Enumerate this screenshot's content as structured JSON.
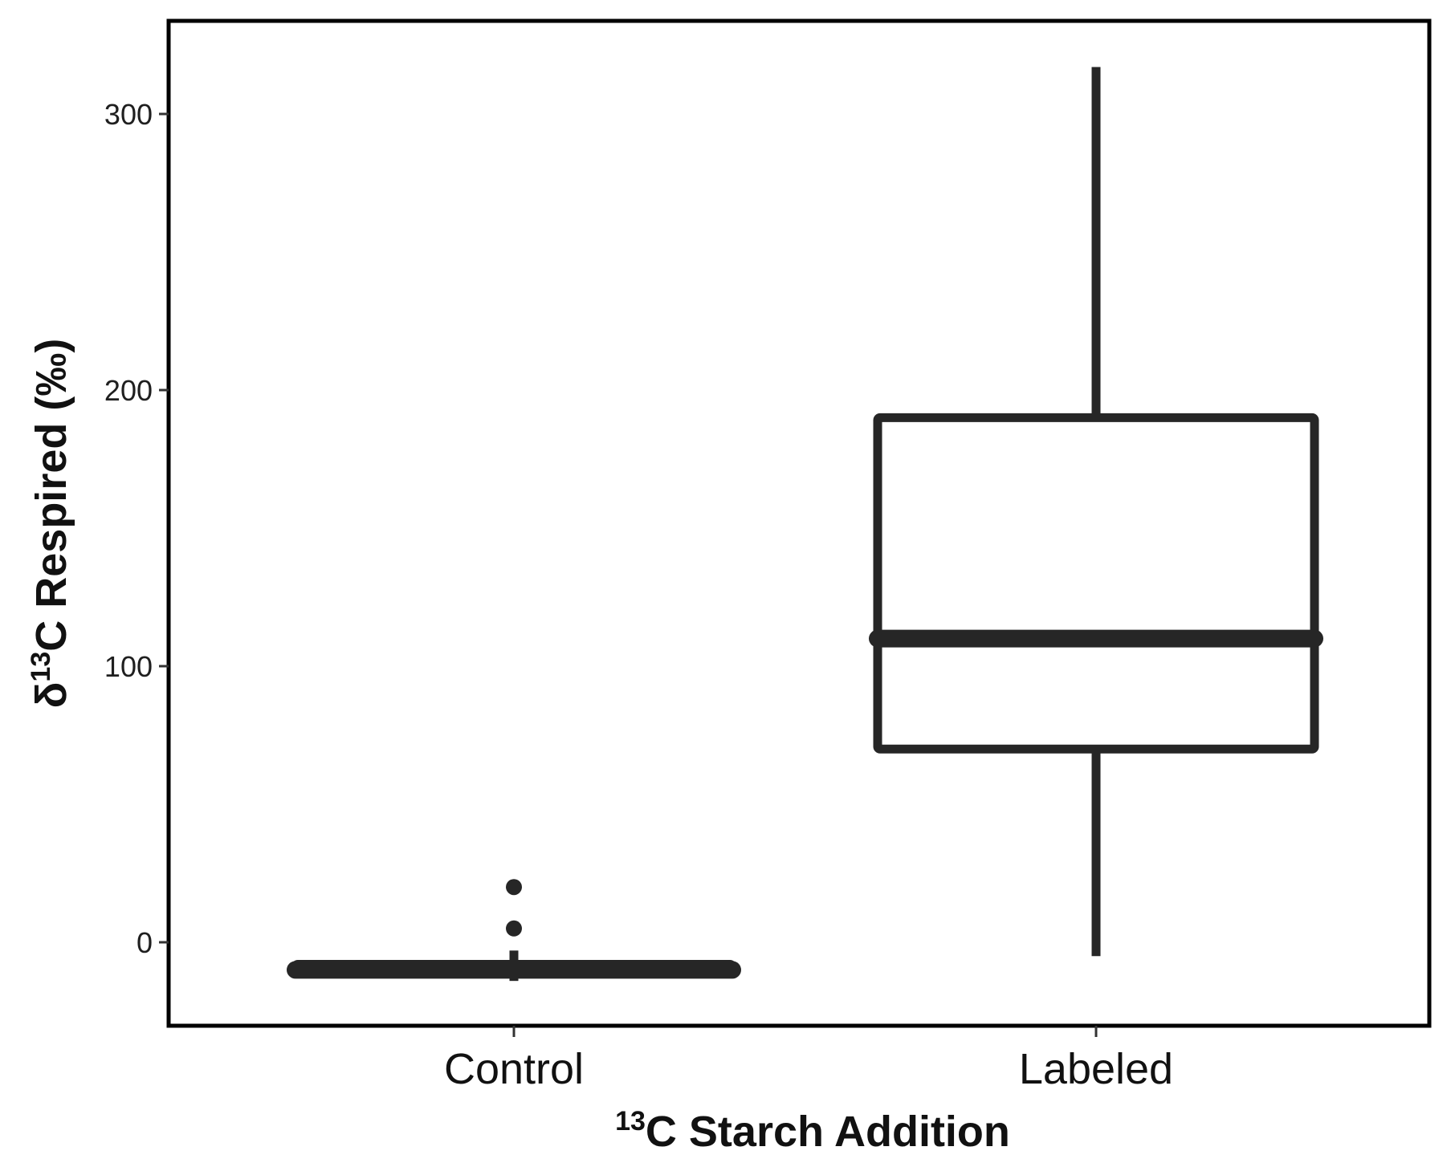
{
  "chart_data": {
    "type": "boxplot",
    "title": "",
    "xlabel": {
      "sup": "13",
      "main": "C Starch Addition"
    },
    "ylabel": {
      "prefix": "δ",
      "sup": "13",
      "main": "C Respired (‰)"
    },
    "ylim": [
      -30,
      330
    ],
    "yticks": [
      0,
      100,
      200,
      300
    ],
    "grid": false,
    "legend": "none",
    "categories": [
      "Control",
      "Labeled"
    ],
    "boxes": [
      {
        "category": "Control",
        "whisker_low": -14,
        "q1": -11,
        "median": -10,
        "q3": -8,
        "whisker_high": -3,
        "outliers": [
          5,
          20
        ]
      },
      {
        "category": "Labeled",
        "whisker_low": -5,
        "q1": 70,
        "median": 110,
        "q3": 190,
        "whisker_high": 317,
        "outliers": []
      }
    ],
    "colors": {
      "line": "#262626",
      "frame": "#000000",
      "fill": "#ffffff"
    }
  }
}
